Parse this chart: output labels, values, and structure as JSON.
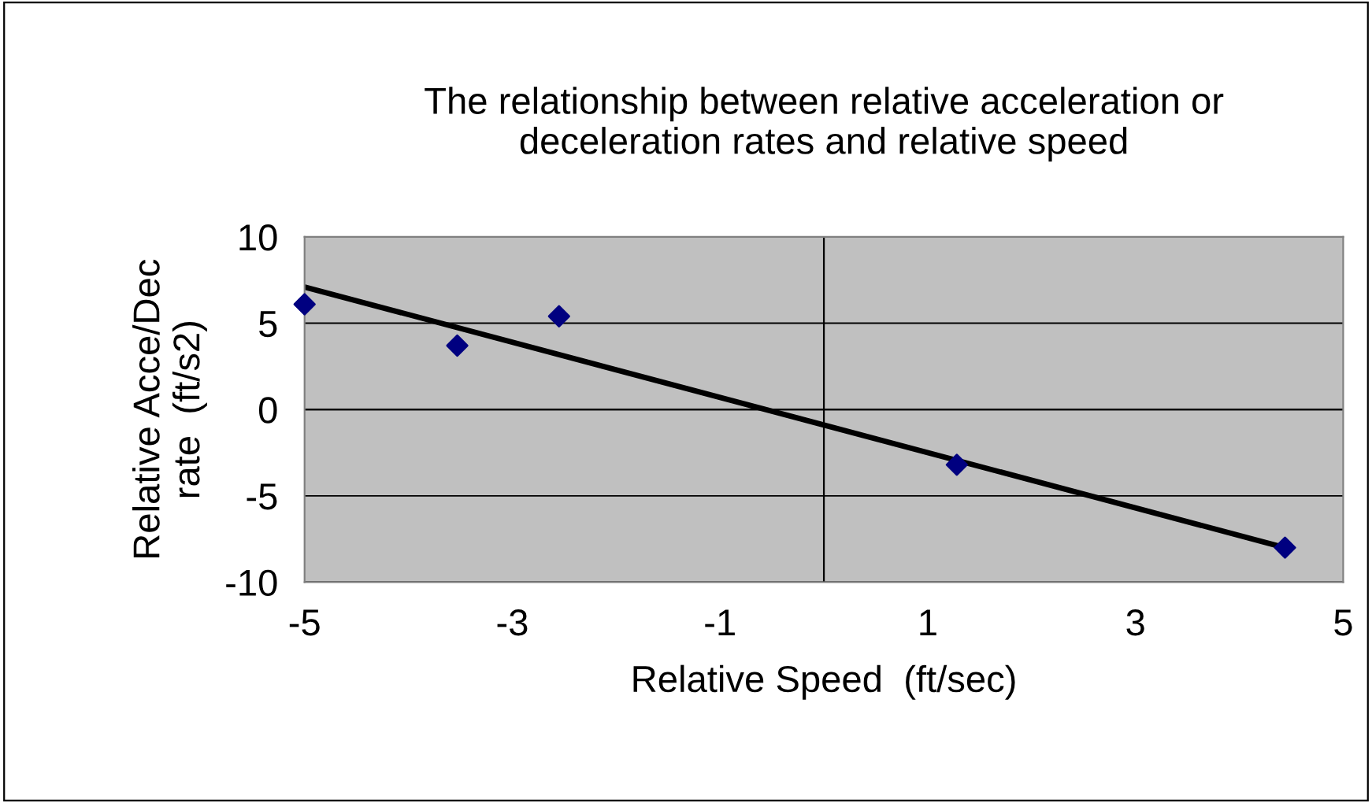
{
  "chart_data": {
    "type": "scatter",
    "title": "The relationship between relative acceleration or\ndeceleration rates and relative speed",
    "xlabel": "Relative Speed  (ft/sec)",
    "ylabel": "Relative Acce/Dec\nrate  (ft/s2)",
    "series": [
      {
        "color": "#000080",
        "marker": "diamond",
        "x": [
          -5,
          -3.53,
          -2.55,
          1.28,
          4.44
        ],
        "values": [
          6.1,
          3.7,
          5.4,
          -3.2,
          -8.0
        ]
      },
      {
        "type": "line",
        "color": "#000000",
        "marker": "none",
        "line_style": "solid",
        "x": [
          -5,
          4.44
        ],
        "values": [
          7.1,
          -8.0
        ]
      }
    ],
    "xlim": [
      -5,
      5
    ],
    "xticks": [
      -5,
      -3,
      -1,
      1,
      3,
      5
    ],
    "ylim": [
      -10,
      10
    ],
    "yticks": [
      -10,
      -5,
      0,
      5,
      10
    ],
    "grid": "y"
  }
}
